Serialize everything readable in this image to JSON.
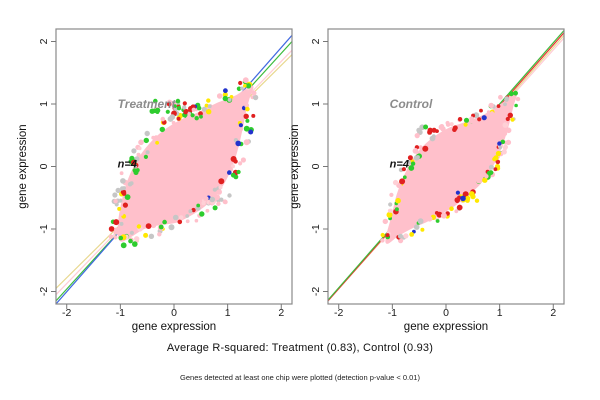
{
  "figure": {
    "caption_primary": "Average R-squared: Treatment (0.83), Control (0.93)",
    "caption_secondary": "Genes detected at least one chip were plotted (detection p-value < 0.01)"
  },
  "chart_data": {
    "type": "scatter",
    "title": "",
    "xlabel": "gene expression",
    "ylabel": "gene expression",
    "xlim": [
      -2.2,
      2.2
    ],
    "ylim": [
      -2.2,
      2.2
    ],
    "x_ticks": [
      -2,
      -1,
      0,
      1,
      2
    ],
    "y_ticks": [
      -2,
      -1,
      0,
      1,
      2
    ],
    "x_tick_labels": [
      "-2",
      "-1",
      "0",
      "1",
      "2"
    ],
    "y_tick_labels": [
      "-2",
      "-1",
      "0",
      "1",
      "2"
    ],
    "grid": false,
    "legend": "none",
    "blob_color": "#FFC0CB",
    "frame_color": "#8a8a8a",
    "dot_palette": [
      {
        "color": "#FFC0CB",
        "w": 0.26
      },
      {
        "color": "#C6C6C6",
        "w": 0.18
      },
      {
        "color": "#2ECC2E",
        "w": 0.2
      },
      {
        "color": "#E02020",
        "w": 0.13
      },
      {
        "color": "#FFE800",
        "w": 0.13
      },
      {
        "color": "#FFD0D6",
        "w": 0.06
      },
      {
        "color": "#2233CC",
        "w": 0.04
      }
    ],
    "panels": [
      {
        "title": "Treatment",
        "n_label": "n=4",
        "r_squared": 0.83,
        "title_pos": [
          -1.05,
          1.0
        ],
        "n_label_pos": [
          -1.05,
          0.05
        ],
        "regression_lines": [
          {
            "color": "#E8D88F",
            "slope": 0.85,
            "intercept": -0.08
          },
          {
            "color": "#FFCCD5",
            "slope": 0.889,
            "intercept": -0.095
          },
          {
            "color": "#3CBB3C",
            "slope": 0.943,
            "intercept": -0.075
          },
          {
            "color": "#4169E1",
            "slope": 0.977,
            "intercept": -0.05
          }
        ],
        "blob_outline": [
          [
            1.45,
            1.28
          ],
          [
            1.15,
            1.12
          ],
          [
            0.8,
            1.0
          ],
          [
            0.45,
            0.85
          ],
          [
            0.1,
            0.72
          ],
          [
            -0.25,
            0.52
          ],
          [
            -0.52,
            0.28
          ],
          [
            -0.72,
            0.02
          ],
          [
            -0.88,
            -0.3
          ],
          [
            -0.98,
            -0.65
          ],
          [
            -1.03,
            -0.95
          ],
          [
            -1.0,
            -1.18
          ],
          [
            -0.82,
            -1.12
          ],
          [
            -0.55,
            -0.98
          ],
          [
            -0.25,
            -0.92
          ],
          [
            0.05,
            -0.88
          ],
          [
            0.35,
            -0.75
          ],
          [
            0.6,
            -0.6
          ],
          [
            0.8,
            -0.42
          ],
          [
            0.95,
            -0.22
          ],
          [
            1.08,
            0.02
          ],
          [
            1.18,
            0.3
          ],
          [
            1.26,
            0.6
          ],
          [
            1.33,
            0.9
          ],
          [
            1.4,
            1.12
          ]
        ],
        "rim_dot_count": 170,
        "rim_jitter": 0.16,
        "seed": 101,
        "sprays": [
          {
            "center": [
              0.05,
              0.9
            ],
            "spread": [
              0.55,
              0.16
            ],
            "count": 42,
            "colors": [
              "#2ECC2E",
              "#2ECC2E",
              "#E02020",
              "#FFC0CB",
              "#C6C6C6",
              "#2ECC2E",
              "#E02020"
            ]
          },
          {
            "center": [
              0.8,
              -0.55
            ],
            "spread": [
              0.35,
              0.13
            ],
            "count": 18,
            "colors": [
              "#FFC0CB",
              "#C6C6C6",
              "#FFD0D6",
              "#FFC0CB"
            ]
          },
          {
            "center": [
              -0.76,
              0.08
            ],
            "spread": [
              0.07,
              0.05
            ],
            "count": 5,
            "colors": [
              "#2ECC2E",
              "#FFE800",
              "#E02020"
            ]
          }
        ]
      },
      {
        "title": "Control",
        "n_label": "n=4",
        "r_squared": 0.93,
        "title_pos": [
          -1.05,
          1.0
        ],
        "n_label_pos": [
          -1.05,
          0.05
        ],
        "regression_lines": [
          {
            "color": "#FFCCD5",
            "slope": 0.955,
            "intercept": -0.045
          },
          {
            "color": "#E8D88F",
            "slope": 0.965,
            "intercept": -0.025
          },
          {
            "color": "#F03030",
            "slope": 0.975,
            "intercept": -0.005
          },
          {
            "color": "#3CBB3C",
            "slope": 0.98,
            "intercept": 0.02
          }
        ],
        "blob_outline": [
          [
            1.3,
            1.18
          ],
          [
            1.05,
            1.0
          ],
          [
            0.72,
            0.82
          ],
          [
            0.38,
            0.7
          ],
          [
            0.05,
            0.6
          ],
          [
            -0.28,
            0.42
          ],
          [
            -0.55,
            0.18
          ],
          [
            -0.75,
            -0.12
          ],
          [
            -0.9,
            -0.45
          ],
          [
            -1.0,
            -0.8
          ],
          [
            -1.08,
            -1.05
          ],
          [
            -1.1,
            -1.22
          ],
          [
            -0.9,
            -1.1
          ],
          [
            -0.65,
            -0.98
          ],
          [
            -0.38,
            -0.88
          ],
          [
            -0.1,
            -0.75
          ],
          [
            0.15,
            -0.62
          ],
          [
            0.4,
            -0.45
          ],
          [
            0.62,
            -0.28
          ],
          [
            0.82,
            -0.05
          ],
          [
            0.97,
            0.2
          ],
          [
            1.08,
            0.45
          ],
          [
            1.17,
            0.72
          ],
          [
            1.24,
            0.97
          ]
        ],
        "rim_dot_count": 150,
        "rim_jitter": 0.1,
        "seed": 202,
        "sprays": [
          {
            "center": [
              -0.3,
              0.55
            ],
            "spread": [
              0.3,
              0.15
            ],
            "count": 10,
            "colors": [
              "#E02020",
              "#FFC0CB",
              "#2ECC2E",
              "#C6C6C6"
            ]
          },
          {
            "center": [
              0.35,
              -0.5
            ],
            "spread": [
              0.3,
              0.1
            ],
            "count": 14,
            "colors": [
              "#FFE800",
              "#E02020",
              "#FFE800",
              "#2233CC",
              "#FFC0CB"
            ]
          }
        ]
      }
    ]
  }
}
